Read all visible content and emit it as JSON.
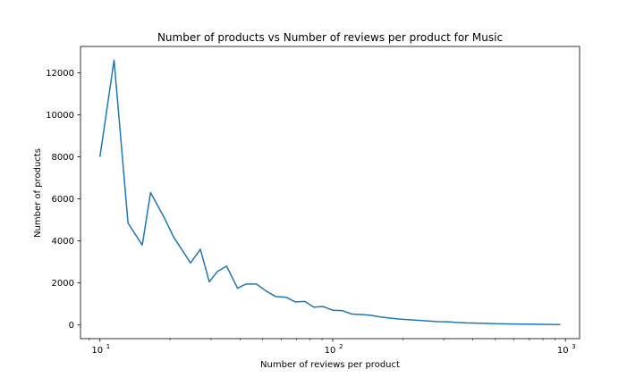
{
  "chart_data": {
    "type": "line",
    "title": "Number of products vs Number of reviews per product for  Music",
    "xlabel": "Number of reviews per product",
    "ylabel": "Number of products",
    "x_scale": "log",
    "xlim": [
      8.25,
      1150
    ],
    "ylim": [
      -650,
      13250
    ],
    "x_ticks": [
      {
        "value": 10,
        "base": "10",
        "exp": "1"
      },
      {
        "value": 100,
        "base": "10",
        "exp": "2"
      },
      {
        "value": 1000,
        "base": "10",
        "exp": "3"
      }
    ],
    "y_ticks": [
      {
        "value": 0,
        "label": "0"
      },
      {
        "value": 2000,
        "label": "2000"
      },
      {
        "value": 4000,
        "label": "4000"
      },
      {
        "value": 6000,
        "label": "6000"
      },
      {
        "value": 8000,
        "label": "8000"
      },
      {
        "value": 10000,
        "label": "10000"
      },
      {
        "value": 12000,
        "label": "12000"
      }
    ],
    "grid": false,
    "series": [
      {
        "color": "#1f77b4",
        "x": [
          10,
          11.5,
          13.2,
          15.2,
          16.5,
          18.9,
          20.8,
          22.3,
          24.5,
          27.0,
          29.5,
          32.0,
          35.0,
          39.0,
          42.5,
          47.0,
          52.0,
          57.0,
          63.0,
          69.0,
          76.0,
          83.0,
          91.0,
          100.0,
          110.0,
          121.0,
          133.0,
          146.0,
          160.0,
          176.0,
          194.0,
          213.0,
          234.0,
          257.0,
          283.0,
          311.0,
          342.0,
          376.0,
          414.0,
          455.0,
          500.0,
          550.0,
          605.0,
          665.0,
          732.0,
          805.0,
          885.0,
          950.0
        ],
        "values": [
          8000,
          12600,
          4850,
          3800,
          6300,
          5100,
          4150,
          3650,
          2950,
          3600,
          2050,
          2550,
          2800,
          1750,
          1950,
          1950,
          1600,
          1350,
          1320,
          1100,
          1120,
          850,
          880,
          700,
          680,
          520,
          500,
          460,
          380,
          330,
          280,
          250,
          220,
          190,
          160,
          150,
          120,
          100,
          90,
          80,
          60,
          50,
          45,
          40,
          35,
          30,
          25,
          20
        ]
      }
    ]
  }
}
